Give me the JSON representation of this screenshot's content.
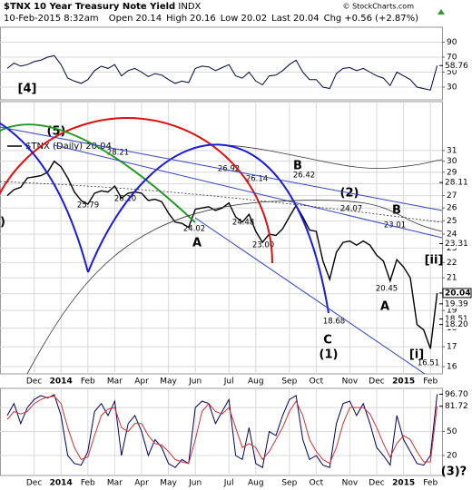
{
  "header": {
    "symbol": "$TNX",
    "name": "10 Year Treasury Note Yield",
    "exchange": "INDX",
    "datetime": "10-Feb-2015 8:32am",
    "stats": [
      {
        "label": "Open",
        "value": "20.14"
      },
      {
        "label": "High",
        "value": "20.16"
      },
      {
        "label": "Low",
        "value": "20.02"
      },
      {
        "label": "Last",
        "value": "20.04"
      },
      {
        "label": "Chg",
        "value": "+0.56 (+2.87%)"
      }
    ],
    "copyright": "© StockCharts.com"
  },
  "chart_data": [
    {
      "type": "line",
      "ylim": [
        13,
        110
      ],
      "yticks": [
        30,
        50,
        70,
        90
      ],
      "grid": true,
      "series": [
        {
          "color": "#000040",
          "values": [
            55,
            62,
            58,
            60,
            64,
            66,
            70,
            72,
            60,
            42,
            38,
            35,
            40,
            52,
            58,
            55,
            60,
            45,
            52,
            55,
            50,
            44,
            48,
            46,
            40,
            35,
            38,
            36,
            55,
            58,
            57,
            52,
            56,
            60,
            45,
            42,
            50,
            38,
            33,
            45,
            46,
            52,
            60,
            66,
            50,
            40,
            40,
            30,
            28,
            48,
            55,
            56,
            52,
            55,
            50,
            45,
            42,
            32,
            50,
            45,
            40,
            30,
            28,
            26,
            58.76
          ]
        }
      ],
      "level_labels": [
        58.76
      ],
      "annotations": [
        {
          "text": "[4]",
          "color": "#1a1aa0"
        }
      ]
    },
    {
      "type": "line",
      "log_scale": true,
      "ylim": [
        15.65,
        36
      ],
      "yticks": [
        16,
        17,
        18,
        19,
        20,
        21,
        22,
        23,
        24,
        25,
        26,
        27,
        28,
        29,
        30,
        31
      ],
      "grid": true,
      "categories": [
        null,
        null,
        null,
        null,
        "Dec",
        null,
        null,
        null,
        "2014",
        null,
        null,
        null,
        "Feb",
        null,
        null,
        null,
        "Mar",
        null,
        null,
        null,
        "Apr",
        null,
        null,
        null,
        "May",
        null,
        null,
        null,
        "Jun",
        null,
        null,
        null,
        null,
        "Jul",
        null,
        null,
        null,
        "Aug",
        null,
        null,
        null,
        null,
        "Sep",
        null,
        null,
        null,
        "Oct",
        null,
        null,
        null,
        null,
        "Nov",
        null,
        null,
        null,
        "Dec",
        null,
        null,
        null,
        "2015",
        null,
        null,
        null,
        "Feb",
        null
      ],
      "series": [
        {
          "name": "$TNX (Daily) 20.04",
          "color": "#000000",
          "values": [
            27.0,
            27.5,
            27.7,
            28.5,
            28.6,
            28.7,
            29.0,
            30.0,
            29.5,
            28.5,
            27.3,
            26.6,
            26.3,
            27.2,
            27.4,
            27.3,
            27.8,
            26.8,
            27.2,
            27.3,
            27.2,
            26.6,
            26.7,
            26.5,
            25.6,
            24.9,
            24.8,
            24.5,
            25.9,
            26.0,
            26.1,
            25.8,
            26.0,
            26.4,
            25.3,
            24.9,
            25.5,
            24.2,
            23.4,
            24.0,
            23.9,
            24.4,
            25.3,
            26.2,
            25.3,
            24.3,
            24.2,
            22.1,
            20.9,
            22.7,
            23.4,
            23.5,
            23.2,
            23.5,
            23.2,
            22.5,
            22.1,
            20.8,
            22.2,
            21.7,
            21.0,
            18.2,
            17.9,
            16.9,
            20.04
          ]
        }
      ],
      "level_labels": [
        28.11,
        23.31,
        20.04,
        19.39,
        18.51,
        {
          "value": 18.2,
          "label": "18.20"
        }
      ],
      "annotations": [
        {
          "text": "(5)",
          "color": "#000"
        },
        {
          "text": "28.21",
          "color": "#000"
        },
        {
          "text": "25.79",
          "color": "#000"
        },
        {
          "text": "26.10",
          "color": "#000"
        },
        {
          "text": "26.92",
          "color": "#000"
        },
        {
          "text": "24.02",
          "color": "#000"
        },
        {
          "text": "A",
          "color": "#8a2be2"
        },
        {
          "text": "24.48",
          "color": "#000"
        },
        {
          "text": "26.14",
          "color": "#000"
        },
        {
          "text": "23.00",
          "color": "#000"
        },
        {
          "text": "B",
          "color": "#8a2be2"
        },
        {
          "text": "26.42",
          "color": "#000"
        },
        {
          "text": "(2)",
          "color": "#000"
        },
        {
          "text": "24.07",
          "color": "#000"
        },
        {
          "text": "B",
          "color": "#8a2be2"
        },
        {
          "text": "23.01",
          "color": "#000"
        },
        {
          "text": "20.45",
          "color": "#000"
        },
        {
          "text": "A",
          "color": "#8a2be2"
        },
        {
          "text": "[ii]",
          "color": "#cc0000"
        },
        {
          "text": "18.68",
          "color": "#000"
        },
        {
          "text": "C",
          "color": "#8a2be2"
        },
        {
          "text": "(1)",
          "color": "#000"
        },
        {
          "text": "[i]",
          "color": "#cc0000"
        },
        {
          "text": "16.51",
          "color": "#000"
        },
        {
          "text": ")",
          "color": "#000"
        }
      ]
    },
    {
      "type": "line",
      "ylim": [
        -5,
        104
      ],
      "yticks": [
        20,
        50,
        80
      ],
      "grid": true,
      "categories": [
        null,
        null,
        null,
        null,
        "Dec",
        null,
        null,
        null,
        "2014",
        null,
        null,
        null,
        "Feb",
        null,
        null,
        null,
        "Mar",
        null,
        null,
        null,
        "Apr",
        null,
        null,
        null,
        "May",
        null,
        null,
        null,
        "Jun",
        null,
        null,
        null,
        null,
        "Jul",
        null,
        null,
        null,
        "Aug",
        null,
        null,
        null,
        null,
        "Sep",
        null,
        null,
        null,
        "Oct",
        null,
        null,
        null,
        null,
        "Nov",
        null,
        null,
        null,
        "Dec",
        null,
        null,
        null,
        "2015",
        null,
        null,
        null,
        "Feb",
        null
      ],
      "series": [
        {
          "color": "#000060",
          "values": [
            70,
            85,
            60,
            80,
            90,
            95,
            92,
            96,
            70,
            20,
            10,
            8,
            25,
            75,
            85,
            70,
            88,
            20,
            60,
            70,
            50,
            20,
            40,
            30,
            10,
            5,
            15,
            10,
            80,
            88,
            85,
            60,
            75,
            90,
            20,
            15,
            55,
            10,
            5,
            50,
            45,
            70,
            90,
            95,
            40,
            15,
            20,
            8,
            5,
            60,
            85,
            88,
            70,
            85,
            60,
            30,
            20,
            8,
            70,
            40,
            25,
            10,
            8,
            20,
            96.7
          ]
        },
        {
          "color": "#d03030",
          "values": [
            65,
            75,
            72,
            75,
            85,
            90,
            93,
            94,
            85,
            55,
            30,
            15,
            18,
            45,
            70,
            78,
            80,
            55,
            50,
            60,
            60,
            45,
            35,
            33,
            25,
            15,
            12,
            10,
            40,
            75,
            85,
            75,
            72,
            80,
            55,
            30,
            35,
            30,
            15,
            25,
            40,
            55,
            75,
            88,
            70,
            40,
            25,
            15,
            10,
            30,
            60,
            80,
            80,
            80,
            72,
            55,
            35,
            18,
            35,
            45,
            40,
            25,
            12,
            12,
            81.72
          ]
        }
      ],
      "level_labels": [
        {
          "value": 96.7,
          "label": "96.70"
        },
        81.72
      ],
      "annotations": [
        {
          "text": "(3)?",
          "color": "#000"
        }
      ]
    }
  ]
}
